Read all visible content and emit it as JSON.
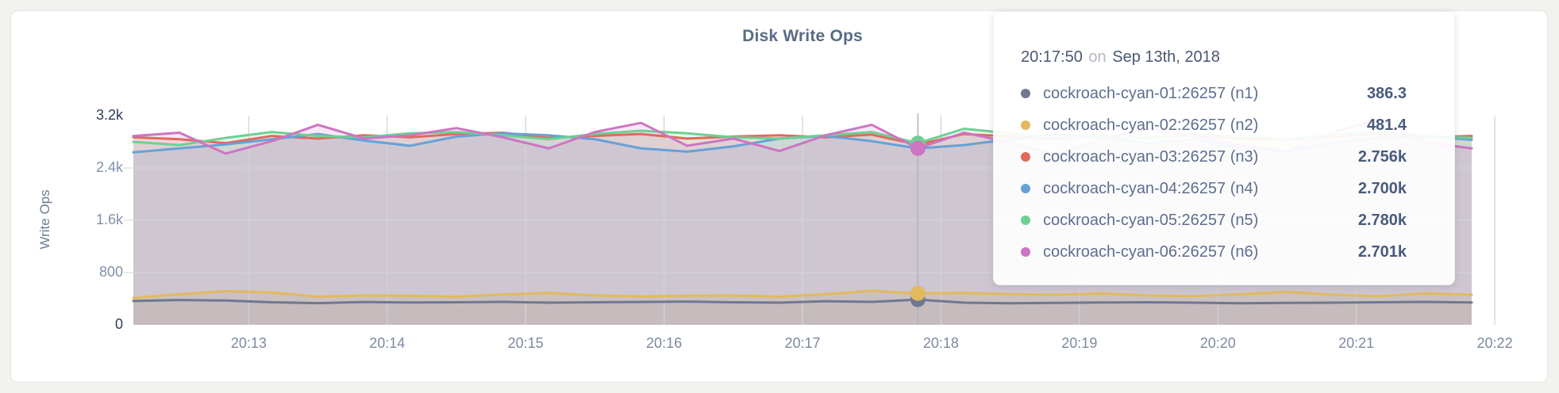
{
  "chart": {
    "title": "Disk Write Ops",
    "y_axis": {
      "label": "Write Ops"
    },
    "colors": {
      "n1": "#6F7890",
      "n2": "#E3B95E",
      "n3": "#DF6A5C",
      "n4": "#67A1D7",
      "n5": "#6FCF93",
      "n6": "#CE74C3"
    }
  },
  "chart_data": {
    "type": "line",
    "title": "Disk Write Ops",
    "xlabel": "",
    "ylabel": "Write Ops",
    "ylim": [
      0,
      3200
    ],
    "grid": true,
    "legend_position": "hover-tooltip",
    "x_start_time": "20:12:10",
    "x_step_seconds": 20,
    "y_ticks": [
      {
        "label": "0",
        "value": 0
      },
      {
        "label": "800",
        "value": 800
      },
      {
        "label": "1.6k",
        "value": 1600
      },
      {
        "label": "2.4k",
        "value": 2400
      },
      {
        "label": "3.2k",
        "value": 3200
      }
    ],
    "x_ticks": [
      {
        "label": "20:13",
        "t": 50
      },
      {
        "label": "20:14",
        "t": 110
      },
      {
        "label": "20:15",
        "t": 170
      },
      {
        "label": "20:16",
        "t": 230
      },
      {
        "label": "20:17",
        "t": 290
      },
      {
        "label": "20:18",
        "t": 350
      },
      {
        "label": "20:19",
        "t": 410
      },
      {
        "label": "20:20",
        "t": 470
      },
      {
        "label": "20:21",
        "t": 530
      },
      {
        "label": "20:22",
        "t": 590
      }
    ],
    "hover_index": 17,
    "series": [
      {
        "name": "cockroach-cyan-01:26257 (n1)",
        "color": "#6F7890",
        "fill_opacity": 0.08,
        "values": [
          365,
          380,
          372,
          345,
          332,
          350,
          342,
          346,
          352,
          340,
          346,
          350,
          356,
          346,
          340,
          362,
          352,
          386.3,
          340,
          330,
          336,
          342,
          346,
          340,
          330,
          336,
          340,
          346,
          352,
          342
        ]
      },
      {
        "name": "cockroach-cyan-02:26257 (n2)",
        "color": "#E3B95E",
        "fill_opacity": 0.2,
        "values": [
          410,
          470,
          515,
          495,
          430,
          450,
          445,
          430,
          465,
          490,
          450,
          435,
          445,
          450,
          430,
          470,
          520,
          481.4,
          490,
          470,
          460,
          480,
          450,
          440,
          470,
          505,
          460,
          440,
          480,
          462
        ]
      },
      {
        "name": "cockroach-cyan-03:26257 (n3)",
        "color": "#DF6A5C",
        "fill_opacity": 0.17,
        "values": [
          2870,
          2840,
          2780,
          2890,
          2850,
          2900,
          2870,
          2920,
          2940,
          2860,
          2890,
          2920,
          2850,
          2880,
          2900,
          2870,
          2910,
          2756,
          2920,
          2880,
          2850,
          2890,
          2860,
          2900,
          2850,
          2830,
          2880,
          2930,
          2870,
          2890
        ]
      },
      {
        "name": "cockroach-cyan-04:26257 (n4)",
        "color": "#67A1D7",
        "fill_opacity": 0.17,
        "values": [
          2640,
          2700,
          2760,
          2840,
          2920,
          2820,
          2740,
          2880,
          2930,
          2900,
          2840,
          2700,
          2650,
          2730,
          2850,
          2890,
          2810,
          2700,
          2750,
          2840,
          2910,
          2870,
          2780,
          2840,
          2700,
          2660,
          2790,
          2860,
          2890,
          2830
        ]
      },
      {
        "name": "cockroach-cyan-05:26257 (n5)",
        "color": "#6FCF93",
        "fill_opacity": 0.17,
        "values": [
          2800,
          2750,
          2860,
          2950,
          2890,
          2870,
          2930,
          2950,
          2900,
          2840,
          2920,
          2970,
          2930,
          2870,
          2850,
          2900,
          2950,
          2780,
          3000,
          2930,
          2860,
          2900,
          2850,
          2920,
          2880,
          2840,
          2910,
          2950,
          2890,
          2860
        ]
      },
      {
        "name": "cockroach-cyan-06:26257 (n6)",
        "color": "#CE74C3",
        "fill_opacity": 0.17,
        "values": [
          2890,
          2940,
          2620,
          2810,
          3060,
          2850,
          2900,
          3010,
          2870,
          2700,
          2950,
          3090,
          2740,
          2850,
          2660,
          2900,
          3060,
          2701,
          2940,
          2790,
          2600,
          2850,
          3000,
          2890,
          2740,
          2660,
          2950,
          3140,
          2790,
          2700
        ]
      }
    ]
  },
  "tooltip": {
    "time": "20:17:50",
    "on": "on",
    "date": "Sep 13th, 2018",
    "rows": [
      {
        "label": "cockroach-cyan-01:26257 (n1)",
        "value": "386.3",
        "color": "#6F7890"
      },
      {
        "label": "cockroach-cyan-02:26257 (n2)",
        "value": "481.4",
        "color": "#E3B95E"
      },
      {
        "label": "cockroach-cyan-03:26257 (n3)",
        "value": "2.756k",
        "color": "#DF6A5C"
      },
      {
        "label": "cockroach-cyan-04:26257 (n4)",
        "value": "2.700k",
        "color": "#67A1D7"
      },
      {
        "label": "cockroach-cyan-05:26257 (n5)",
        "value": "2.780k",
        "color": "#6FCF93"
      },
      {
        "label": "cockroach-cyan-06:26257 (n6)",
        "value": "2.701k",
        "color": "#CE74C3"
      }
    ]
  }
}
